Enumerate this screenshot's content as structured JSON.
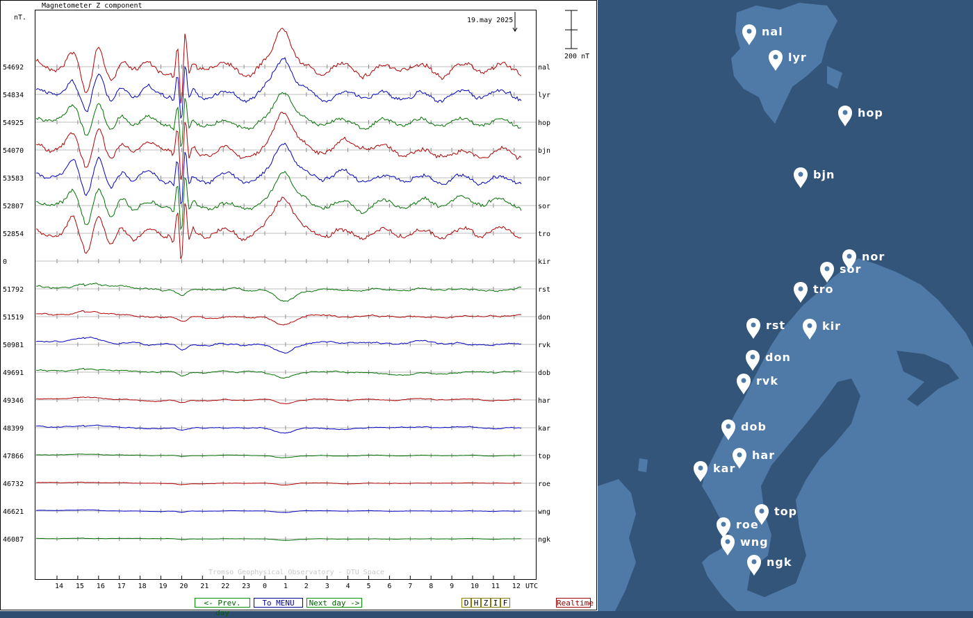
{
  "chart_data": {
    "type": "line",
    "title": "Magnetometer Z component",
    "ylabel": "nT.",
    "date_label": "19.may 2025",
    "scale_label": "200 nT",
    "credit": "Tromso Geophysical Observatory - DTU Space",
    "xlabel": "UTC",
    "x_ticks": [
      "14",
      "15",
      "16",
      "17",
      "18",
      "19",
      "20",
      "21",
      "22",
      "23",
      "0",
      "1",
      "2",
      "3",
      "4",
      "5",
      "6",
      "7",
      "8",
      "9",
      "10",
      "11",
      "12"
    ],
    "series": [
      {
        "name": "nal",
        "baseline": "54692",
        "color": "#b00000",
        "amp": 1.2
      },
      {
        "name": "lyr",
        "baseline": "54834",
        "color": "#0000c0",
        "amp": 1.0
      },
      {
        "name": "hop",
        "baseline": "54925",
        "color": "#007000",
        "amp": 0.9
      },
      {
        "name": "bjn",
        "baseline": "54070",
        "color": "#b00000",
        "amp": 1.1
      },
      {
        "name": "nor",
        "baseline": "53583",
        "color": "#0000c0",
        "amp": 1.0
      },
      {
        "name": "sor",
        "baseline": "52807",
        "color": "#007000",
        "amp": 1.0
      },
      {
        "name": "tro",
        "baseline": "52854",
        "color": "#b00000",
        "amp": 1.1
      },
      {
        "name": "kir",
        "baseline": "0",
        "color": "#000000",
        "amp": 0
      },
      {
        "name": "rst",
        "baseline": "51792",
        "color": "#007000",
        "amp": 0.7
      },
      {
        "name": "don",
        "baseline": "51519",
        "color": "#b00000",
        "amp": 0.6
      },
      {
        "name": "rvk",
        "baseline": "50981",
        "color": "#0000c0",
        "amp": 0.6
      },
      {
        "name": "dob",
        "baseline": "49691",
        "color": "#007000",
        "amp": 0.45
      },
      {
        "name": "har",
        "baseline": "49346",
        "color": "#b00000",
        "amp": 0.3
      },
      {
        "name": "kar",
        "baseline": "48399",
        "color": "#0000c0",
        "amp": 0.35
      },
      {
        "name": "top",
        "baseline": "47866",
        "color": "#007000",
        "amp": 0.15
      },
      {
        "name": "roe",
        "baseline": "46732",
        "color": "#b00000",
        "amp": 0.15
      },
      {
        "name": "wng",
        "baseline": "46621",
        "color": "#0000c0",
        "amp": 0.12
      },
      {
        "name": "ngk",
        "baseline": "46087",
        "color": "#007000",
        "amp": 0.1
      }
    ]
  },
  "nav": {
    "prev": "<- Prev. day",
    "menu": "To MENU",
    "next": "Next day ->",
    "components": [
      "D",
      "H",
      "Z",
      "I",
      "F"
    ],
    "realtime": "Realtime"
  },
  "map": {
    "stations": [
      "nal",
      "lyr",
      "hop",
      "bjn",
      "nor",
      "sor",
      "tro",
      "kir",
      "rst",
      "don",
      "rvk",
      "dob",
      "har",
      "kar",
      "top",
      "roe",
      "wng",
      "ngk"
    ]
  }
}
